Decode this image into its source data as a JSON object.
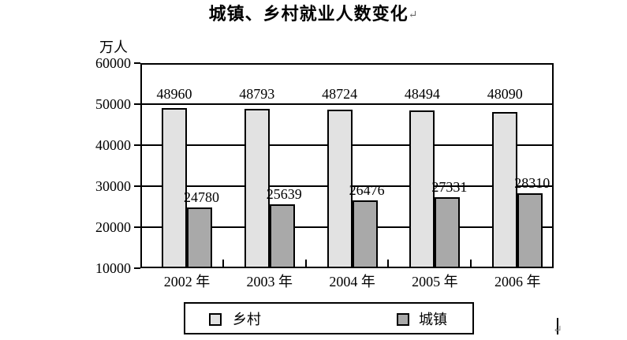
{
  "title": {
    "text": "城镇、乡村就业人数变化",
    "return_mark": "↵"
  },
  "chart_data": {
    "type": "bar",
    "title": "城镇、乡村就业人数变化",
    "unit_label": "万人",
    "xlabel": "",
    "ylabel": "万人",
    "categories": [
      "2002 年",
      "2003 年",
      "2004 年",
      "2005 年",
      "2006 年"
    ],
    "series": [
      {
        "name": "乡村",
        "color": "#e2e2e2",
        "values": [
          48960,
          48793,
          48724,
          48494,
          48090
        ]
      },
      {
        "name": "城镇",
        "color": "#a9a9a9",
        "values": [
          24780,
          25639,
          26476,
          27331,
          28310
        ]
      }
    ],
    "ylim": [
      10000,
      60000
    ],
    "yticks": [
      10000,
      20000,
      30000,
      40000,
      50000,
      60000
    ],
    "grid": true,
    "legend_position": "bottom"
  },
  "cursor": {
    "return_mark": "↵"
  },
  "colors": {
    "axis": "#000000",
    "background": "#ffffff",
    "rural_bar": "#e2e2e2",
    "urban_bar": "#a9a9a9"
  }
}
